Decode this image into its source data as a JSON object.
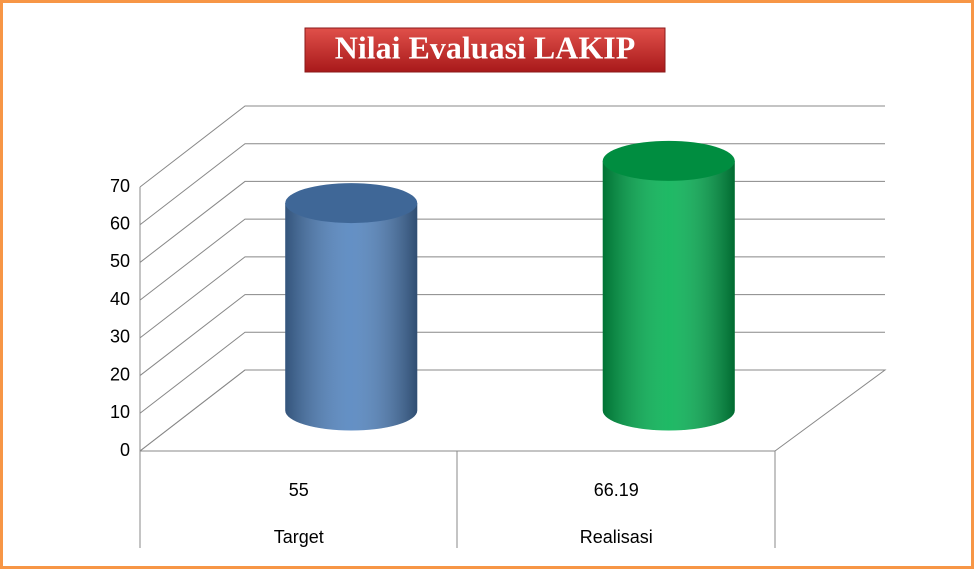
{
  "chart_data": {
    "type": "bar",
    "title": "Nilai Evaluasi LAKIP",
    "categories": [
      "Target",
      "Realisasi"
    ],
    "values": [
      55,
      66.19
    ],
    "colors": [
      "#4f81bd",
      "#00b050"
    ],
    "ylim": [
      0,
      70
    ],
    "yticks": [
      0,
      10,
      20,
      30,
      40,
      50,
      60,
      70
    ],
    "grid": true
  }
}
